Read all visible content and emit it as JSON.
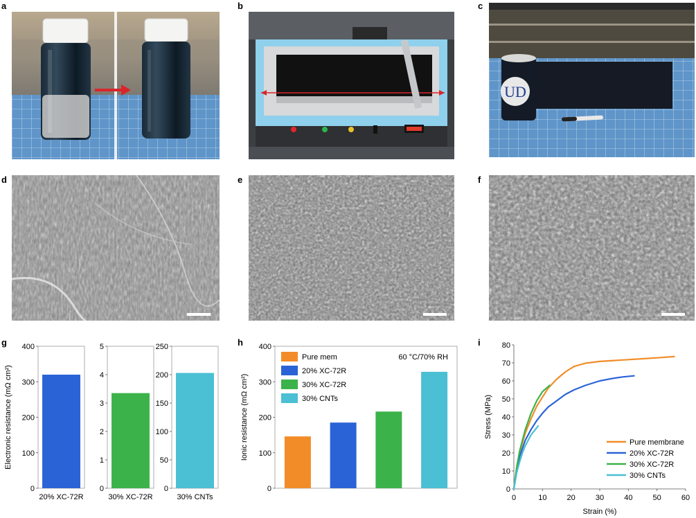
{
  "panels": {
    "a": "a",
    "b": "b",
    "c": "c",
    "d": "d",
    "e": "e",
    "f": "f",
    "g": "g",
    "h": "h",
    "i": "i"
  },
  "colors": {
    "orange": "#f28c28",
    "blue": "#2a63d6",
    "green": "#3cb34a",
    "cyan": "#4bbfd4",
    "arrow_red": "#d9252a",
    "mat_blue": "#5f95c9"
  },
  "photo_c": {
    "logo_text": "UD"
  },
  "panel_g": {
    "ylabel": "Electronic resistance (mΩ cm²)",
    "charts": [
      {
        "category": "20% XC-72R",
        "value": 320,
        "ylim": [
          0,
          400
        ],
        "ticks": [
          0,
          100,
          200,
          300,
          400
        ],
        "color": "#2a63d6"
      },
      {
        "category": "30% XC-72R",
        "value": 3.35,
        "ylim": [
          0,
          5
        ],
        "ticks": [
          0,
          1,
          2,
          3,
          4,
          5
        ],
        "color": "#3cb34a"
      },
      {
        "category": "30% CNTs",
        "value": 203,
        "ylim": [
          0,
          250
        ],
        "ticks": [
          0,
          50,
          100,
          150,
          200,
          250
        ],
        "color": "#4bbfd4"
      }
    ]
  },
  "chart_data": [
    {
      "type": "bar",
      "panel": "h",
      "categories": [
        "Pure mem",
        "20% XC-72R",
        "30% XC-72R",
        "30% CNTs"
      ],
      "values": [
        146,
        185,
        216,
        328
      ],
      "colors": [
        "#f28c28",
        "#2a63d6",
        "#3cb34a",
        "#4bbfd4"
      ],
      "ylabel": "Ionic resistance (mΩ cm²)",
      "ylim": [
        0,
        400
      ],
      "yticks": [
        0,
        100,
        200,
        300,
        400
      ],
      "annotation": "60 °C/70% RH",
      "legend": [
        "Pure mem",
        "20% XC-72R",
        "30% XC-72R",
        "30% CNTs"
      ],
      "legend_position": "top-left"
    },
    {
      "type": "line",
      "panel": "i",
      "xlabel": "Strain (%)",
      "ylabel": "Stress (MPa)",
      "xlim": [
        0,
        60
      ],
      "ylim": [
        0,
        80
      ],
      "xticks": [
        0,
        10,
        20,
        30,
        40,
        50,
        60
      ],
      "yticks": [
        0,
        10,
        20,
        30,
        40,
        50,
        60,
        70,
        80
      ],
      "legend_position": "bottom-right",
      "series": [
        {
          "name": "Pure membrane",
          "color": "#f28c28",
          "x": [
            0,
            1,
            2,
            4,
            6,
            8,
            10,
            12,
            15,
            18,
            21,
            25,
            30,
            35,
            40,
            45,
            50,
            56
          ],
          "y": [
            0,
            12,
            20,
            31,
            39,
            46,
            51,
            56,
            61,
            65,
            68,
            69.8,
            70.8,
            71.3,
            71.8,
            72.3,
            72.8,
            73.5
          ]
        },
        {
          "name": "20% XC-72R",
          "color": "#2a63d6",
          "x": [
            0,
            1,
            2,
            4,
            6,
            8,
            10,
            12,
            15,
            18,
            21,
            25,
            30,
            35,
            38,
            42
          ],
          "y": [
            0,
            11,
            18,
            27,
            33,
            38,
            42,
            45.5,
            49,
            52.5,
            55,
            57.5,
            60,
            61.5,
            62.2,
            62.8
          ]
        },
        {
          "name": "30% XC-72R",
          "color": "#3cb34a",
          "x": [
            0,
            1,
            2,
            4,
            6,
            8,
            10,
            12.5
          ],
          "y": [
            0,
            12,
            21,
            33,
            42,
            49,
            54,
            57.5
          ]
        },
        {
          "name": "30% CNTs",
          "color": "#4bbfd4",
          "x": [
            0,
            1,
            2,
            3,
            4,
            5,
            6,
            7,
            8.5
          ],
          "y": [
            0,
            9,
            15,
            20,
            24,
            27,
            30,
            32,
            35
          ]
        }
      ]
    }
  ]
}
